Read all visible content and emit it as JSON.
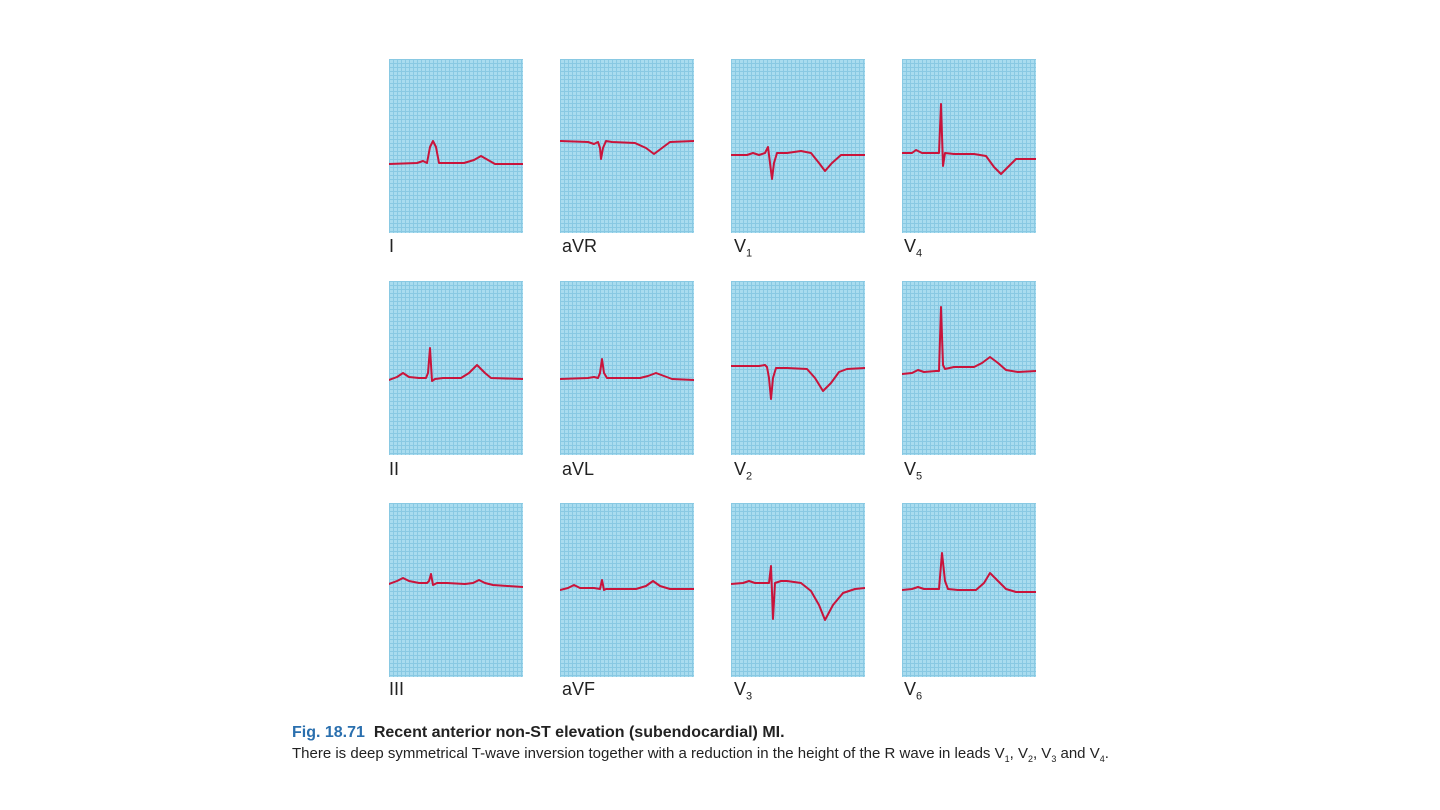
{
  "figure": {
    "leads": [
      {
        "name": "I",
        "label": "I",
        "sub": ""
      },
      {
        "name": "aVR",
        "label": "aVR",
        "sub": ""
      },
      {
        "name": "V1",
        "label": "V",
        "sub": "1"
      },
      {
        "name": "V4",
        "label": "V",
        "sub": "4"
      },
      {
        "name": "II",
        "label": "II",
        "sub": ""
      },
      {
        "name": "aVL",
        "label": "aVL",
        "sub": ""
      },
      {
        "name": "V2",
        "label": "V",
        "sub": "2"
      },
      {
        "name": "V5",
        "label": "V",
        "sub": "5"
      },
      {
        "name": "III",
        "label": "III",
        "sub": ""
      },
      {
        "name": "aVF",
        "label": "aVF",
        "sub": ""
      },
      {
        "name": "V3",
        "label": "V",
        "sub": "3"
      },
      {
        "name": "V6",
        "label": "V",
        "sub": "6"
      }
    ],
    "caption": {
      "number": "Fig. 18.71",
      "title": "Recent anterior non-ST elevation (subendocardial) MI.",
      "body_text": "There is deep symmetrical T-wave inversion together with a reduction in the height of the R wave in leads V",
      "body_leads": [
        "1",
        "2",
        "3",
        "4"
      ]
    },
    "colors": {
      "grid_background": "#a9dcef",
      "grid_lines": "#89c9e3",
      "trace": "#c9143b",
      "figure_number": "#2a6fae"
    }
  }
}
